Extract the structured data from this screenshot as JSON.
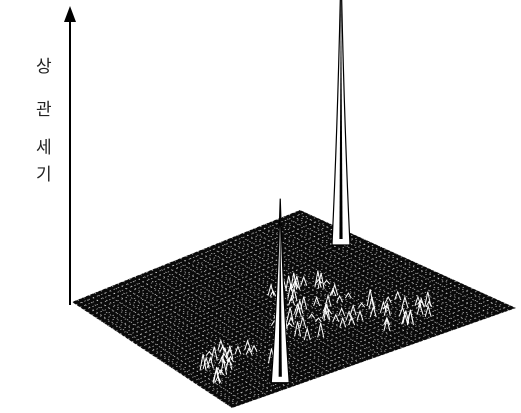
{
  "chart_data": {
    "type": "surface",
    "ylabel": [
      "상",
      "관",
      "세",
      "기"
    ],
    "peaks": [
      {
        "position": "left",
        "relative_height": 0.66
      },
      {
        "position": "right",
        "relative_height": 1.0
      }
    ],
    "grid": true,
    "surface_color": "#0a0a0a",
    "mesh_color": "#ffffff"
  }
}
